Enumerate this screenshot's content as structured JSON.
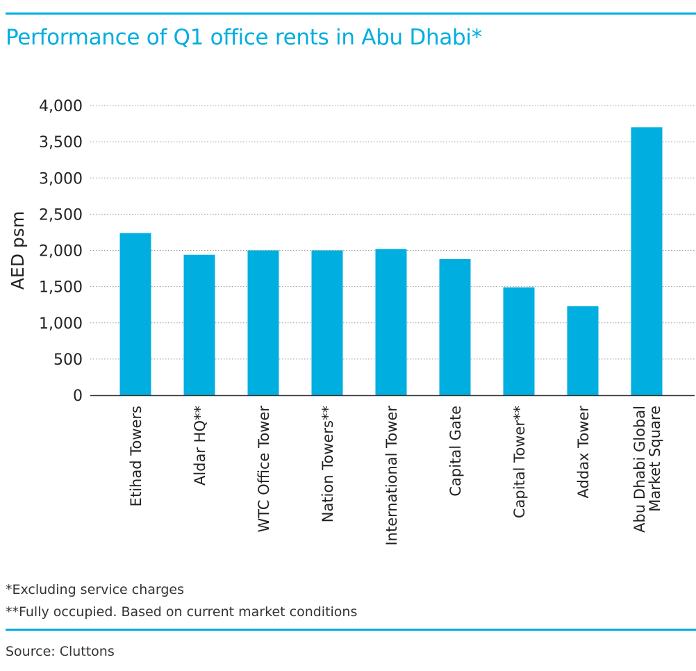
{
  "colors": {
    "accent": "#00aee0",
    "text": "#222222",
    "grid": "#9a9a9a"
  },
  "footnotes": {
    "note1": "*Excluding service charges",
    "note2": "**Fully occupied. Based on current market conditions"
  },
  "source": "Source: Cluttons",
  "chart_data": {
    "type": "bar",
    "title": "Performance of Q1 office rents in Abu Dhabi*",
    "xlabel": "",
    "ylabel": "AED psm",
    "ylim": [
      0,
      4000
    ],
    "yticks": [
      0,
      500,
      1000,
      1500,
      2000,
      2500,
      3000,
      3500,
      4000
    ],
    "ytick_labels": [
      "0",
      "500",
      "1,000",
      "1,500",
      "2,000",
      "2,500",
      "3,000",
      "3,500",
      "4,000"
    ],
    "grid": true,
    "categories": [
      [
        "Etihad Towers"
      ],
      [
        "Aldar HQ**"
      ],
      [
        "WTC Office Tower"
      ],
      [
        "Nation Towers**"
      ],
      [
        "International Tower"
      ],
      [
        "Capital Gate"
      ],
      [
        "Capital Tower**"
      ],
      [
        "Addax Tower"
      ],
      [
        "Abu Dhabi Global",
        "Market Square"
      ]
    ],
    "values": [
      2240,
      1940,
      2000,
      2000,
      2020,
      1880,
      1490,
      1230,
      3700
    ]
  }
}
